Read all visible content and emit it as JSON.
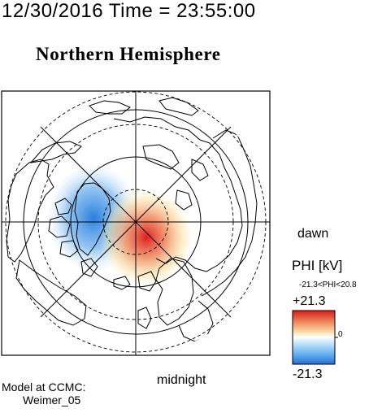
{
  "header": {
    "timestamp": "12/30/2016 Time = 23:55:00",
    "title": "Northern Hemisphere"
  },
  "map": {
    "labels": {
      "dawn": "dawn",
      "midnight": "midnight"
    },
    "potential_cells": [
      {
        "sign": "negative",
        "color": "#3a8ee0",
        "region": "over northern Canada / Greenland"
      },
      {
        "sign": "positive",
        "color": "#e02020",
        "region": "over Arctic Ocean north of Scandinavia"
      }
    ]
  },
  "colorbar": {
    "title": "PHI [kV]",
    "range_text": "-21.3<PHI<20.8",
    "max_label": "+21.3",
    "min_label": "-21.3",
    "zero_label": "0",
    "colors": [
      "#d42020",
      "#ffffff",
      "#2a7fe0"
    ]
  },
  "footer": {
    "model_line": "Model at CCMC:",
    "model_name": "Weimer_05"
  }
}
